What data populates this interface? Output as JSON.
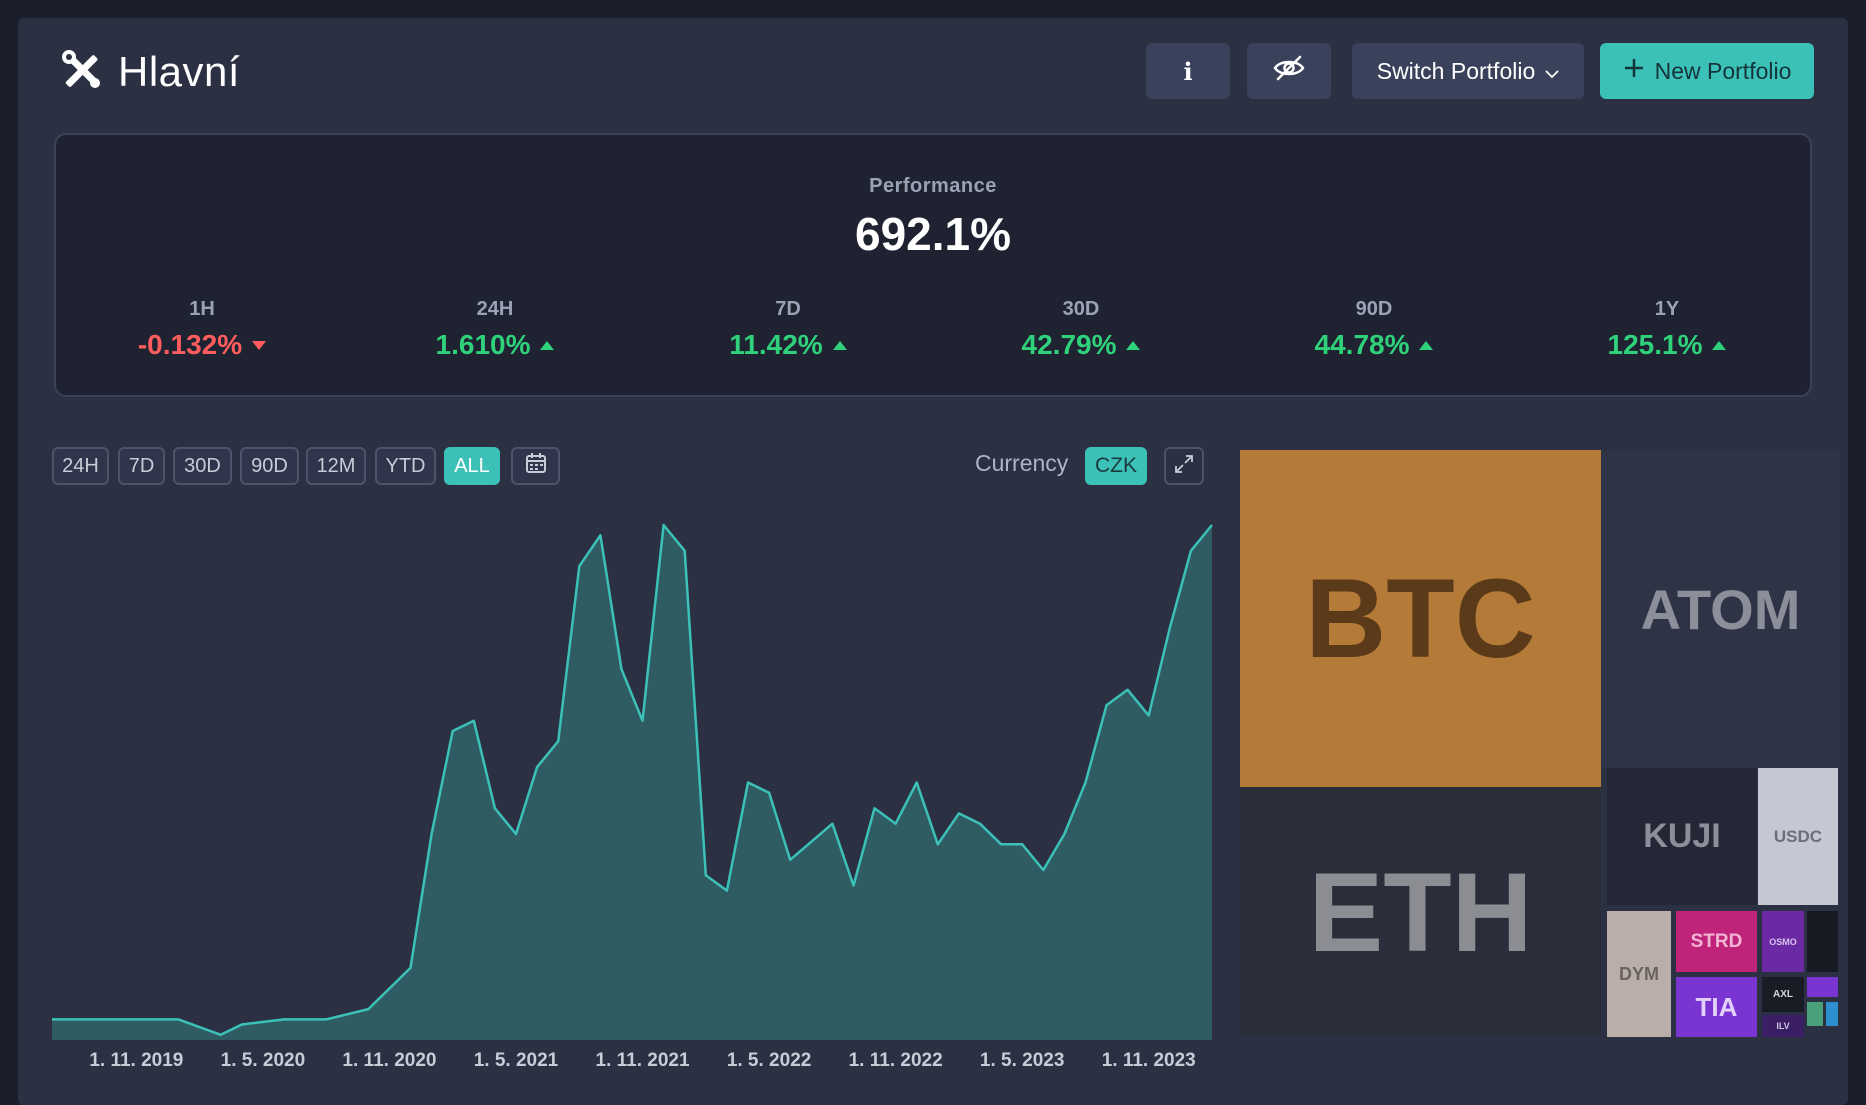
{
  "header": {
    "title": "Hlavní",
    "switch_portfolio_label": "Switch Portfolio",
    "new_portfolio_label": "New Portfolio"
  },
  "performance": {
    "label": "Performance",
    "value": "692.1%",
    "stats": [
      {
        "period": "1H",
        "value": "-0.132%",
        "direction": "down"
      },
      {
        "period": "24H",
        "value": "1.610%",
        "direction": "up"
      },
      {
        "period": "7D",
        "value": "11.42%",
        "direction": "up"
      },
      {
        "period": "30D",
        "value": "42.79%",
        "direction": "up"
      },
      {
        "period": "90D",
        "value": "44.78%",
        "direction": "up"
      },
      {
        "period": "1Y",
        "value": "125.1%",
        "direction": "up"
      }
    ]
  },
  "chart_controls": {
    "ranges": [
      "24H",
      "7D",
      "30D",
      "90D",
      "12M",
      "YTD",
      "ALL"
    ],
    "active_range": "ALL",
    "currency_label": "Currency",
    "currency_value": "CZK"
  },
  "chart_data": {
    "type": "area",
    "x_tick_labels": [
      "1. 11. 2019",
      "1. 5. 2020",
      "1. 11. 2020",
      "1. 5. 2021",
      "1. 11. 2021",
      "1. 5. 2022",
      "1. 11. 2022",
      "1. 5. 2023",
      "1. 11. 2023"
    ],
    "series": [
      {
        "x": [
          "2019-07",
          "2019-09",
          "2019-11",
          "2020-01",
          "2020-03",
          "2020-04",
          "2020-06",
          "2020-08",
          "2020-10",
          "2020-12",
          "2021-01",
          "2021-02",
          "2021-03",
          "2021-04",
          "2021-05",
          "2021-06",
          "2021-07",
          "2021-08",
          "2021-09",
          "2021-10",
          "2021-11",
          "2021-12",
          "2022-01",
          "2022-02",
          "2022-03",
          "2022-04",
          "2022-05",
          "2022-06",
          "2022-08",
          "2022-09",
          "2022-10",
          "2022-11",
          "2022-12",
          "2023-01",
          "2023-02",
          "2023-03",
          "2023-04",
          "2023-05",
          "2023-06",
          "2023-07",
          "2023-08",
          "2023-09",
          "2023-10",
          "2023-11",
          "2023-12",
          "2024-01",
          "2024-02"
        ],
        "values": [
          4,
          4,
          4,
          4,
          1,
          3,
          4,
          4,
          6,
          14,
          40,
          60,
          62,
          45,
          40,
          53,
          58,
          92,
          98,
          72,
          62,
          100,
          95,
          32,
          29,
          50,
          48,
          35,
          42,
          30,
          45,
          42,
          50,
          38,
          44,
          42,
          38,
          38,
          33,
          40,
          50,
          65,
          68,
          63,
          80,
          95,
          100
        ]
      }
    ],
    "color": "#3cc1b8",
    "fill": "#2f5c63"
  },
  "treemap": [
    {
      "name": "BTC",
      "bg": "#b47a37",
      "fg": "#5b3a1a"
    },
    {
      "name": "ETH",
      "bg": "#2a2e3a",
      "fg": "#8b8d92"
    },
    {
      "name": "ATOM",
      "bg": "#2e3346",
      "fg": "#8c8f9a"
    },
    {
      "name": "KUJI",
      "bg": "#242836",
      "fg": "#8c8f9a"
    },
    {
      "name": "USDC",
      "bg": "#c5c8d2",
      "fg": "#6c6f78"
    },
    {
      "name": "DYM",
      "bg": "#b9aea8",
      "fg": "#6a625e"
    },
    {
      "name": "STRD",
      "bg": "#c0237a",
      "fg": "#f1b6d3"
    },
    {
      "name": "TIA",
      "bg": "#7a34d2",
      "fg": "#e2d2fb"
    },
    {
      "name": "OSMO",
      "bg": "#6b2aa3",
      "fg": "#d7c4ee"
    },
    {
      "name": "AXL",
      "bg": "#191c24",
      "fg": "#d4d6dc"
    },
    {
      "name": "ILV",
      "bg": "#3b1f64",
      "fg": "#cfc3e3"
    }
  ],
  "icons": {
    "title": "tools-icon",
    "info": "info-icon",
    "hide": "eye-slash-icon",
    "calendar": "calendar-icon",
    "expand": "expand-icon",
    "plus": "plus-icon",
    "chevron": "chevron-down-icon"
  }
}
